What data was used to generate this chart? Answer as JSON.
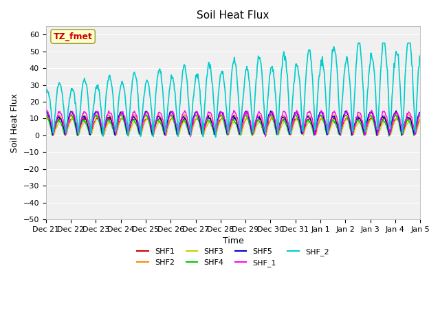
{
  "title": "Soil Heat Flux",
  "xlabel": "Time",
  "ylabel": "Soil Heat Flux",
  "ylim": [
    -50,
    65
  ],
  "yticks": [
    -50,
    -40,
    -30,
    -20,
    -10,
    0,
    10,
    20,
    30,
    40,
    50,
    60
  ],
  "background_color": "#ffffff",
  "plot_bg_color": "#f0f0f0",
  "series_colors": {
    "SHF1": "#cc0000",
    "SHF2": "#ff8800",
    "SHF3": "#cccc00",
    "SHF4": "#00cc00",
    "SHF5": "#0000cc",
    "SHF_1": "#ff00ff",
    "SHF_2": "#00cccc"
  },
  "legend_label": "TZ_fmet",
  "x_tick_labels": [
    "Dec 21",
    "Dec 22",
    "Dec 23",
    "Dec 24",
    "Dec 25",
    "Dec 26",
    "Dec 27",
    "Dec 28",
    "Dec 29",
    "Dec 30",
    "Dec 31",
    "Jan 1",
    "Jan 2",
    "Jan 3",
    "Jan 4",
    "Jan 5"
  ],
  "num_days": 15,
  "seed": 42
}
